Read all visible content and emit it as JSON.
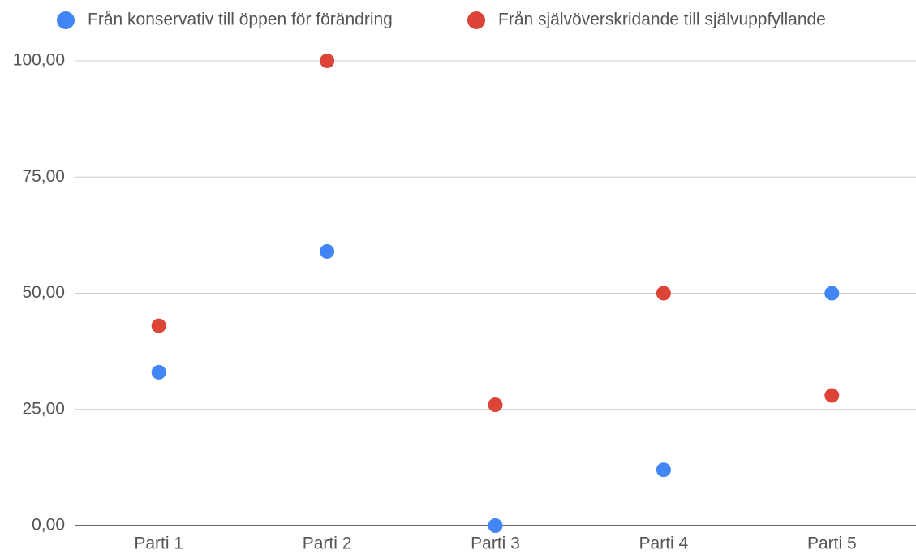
{
  "chart_data": {
    "type": "scatter",
    "categories": [
      "Parti 1",
      "Parti 2",
      "Parti 3",
      "Parti 4",
      "Parti 5"
    ],
    "series": [
      {
        "name": "Från konservativ till öppen för förändring",
        "color": "#4285f4",
        "values": [
          33,
          59,
          0,
          12,
          50
        ]
      },
      {
        "name": "Från självöverskridande till självuppfyllande",
        "color": "#db4437",
        "values": [
          43,
          100,
          26,
          50,
          28
        ]
      }
    ],
    "ylim": [
      0,
      100
    ],
    "yticks": [
      {
        "value": 0,
        "label": "0,00"
      },
      {
        "value": 25,
        "label": "25,00"
      },
      {
        "value": 50,
        "label": "50,00"
      },
      {
        "value": 75,
        "label": "75,00"
      },
      {
        "value": 100,
        "label": "100,00"
      }
    ],
    "grid": true,
    "legend": "top"
  }
}
